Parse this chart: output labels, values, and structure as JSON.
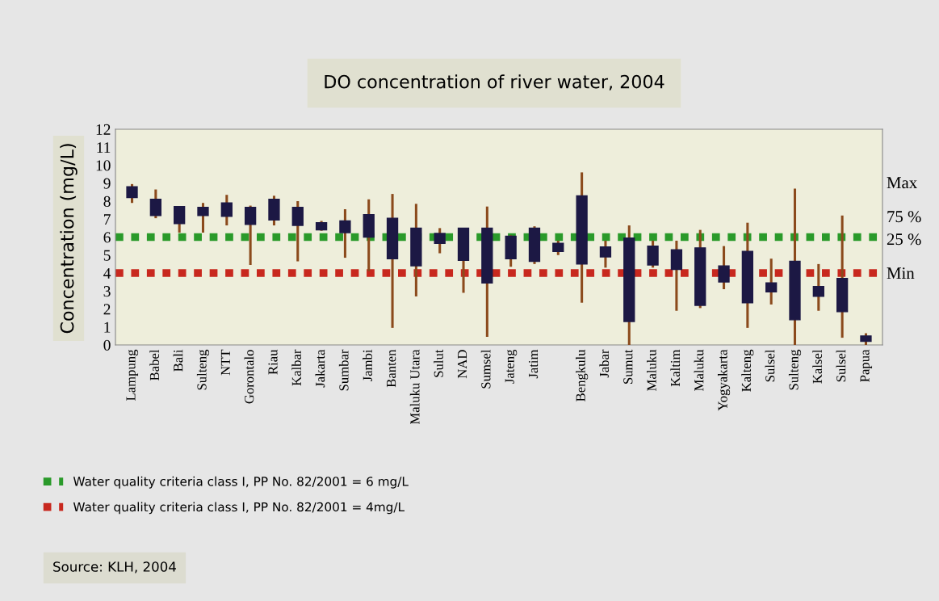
{
  "chart_data": {
    "type": "box",
    "title": "DO concentration of river water, 2004",
    "ylabel": "Concentration (mg/L)",
    "categories": [
      "Lampung",
      "Babel",
      "Bali",
      "Sulteng",
      "NTT",
      "Gorontalo",
      "Riau",
      "Kalbar",
      "Jakarta",
      "Sumbar",
      "Jambi",
      "Banten",
      "Maluku Utara",
      "Sulut",
      "NAD",
      "Sumsel",
      "Jateng",
      "Jatim",
      null,
      "Bengkulu",
      "Jabar",
      "Sumut",
      "Maluku",
      "Kaltim",
      "Maluku",
      "Yogyakarta",
      "Kalteng",
      "Sulsel",
      "Sulteng",
      "Kalsel",
      "Sulsel",
      "Papua"
    ],
    "color": "#1c1844",
    "boxes": [
      {
        "low": 7.9,
        "q1": 8.2,
        "q3": 8.8,
        "high": 8.95
      },
      {
        "low": 7.05,
        "q1": 7.2,
        "q3": 8.1,
        "high": 8.65
      },
      {
        "low": 6.25,
        "q1": 6.75,
        "q3": 7.7,
        "high": 7.7
      },
      {
        "low": 6.25,
        "q1": 7.2,
        "q3": 7.65,
        "high": 7.9
      },
      {
        "low": 6.65,
        "q1": 7.15,
        "q3": 7.9,
        "high": 8.35
      },
      {
        "low": 4.45,
        "q1": 6.7,
        "q3": 7.65,
        "high": 7.75
      },
      {
        "low": 6.65,
        "q1": 6.95,
        "q3": 8.1,
        "high": 8.3
      },
      {
        "low": 4.65,
        "q1": 6.65,
        "q3": 7.65,
        "high": 8.0
      },
      {
        "low": 6.35,
        "q1": 6.4,
        "q3": 6.8,
        "high": 6.9
      },
      {
        "low": 4.85,
        "q1": 6.25,
        "q3": 6.9,
        "high": 7.55
      },
      {
        "low": 4.1,
        "q1": 6.0,
        "q3": 7.25,
        "high": 8.1
      },
      {
        "low": 0.95,
        "q1": 4.8,
        "q3": 7.05,
        "high": 8.4
      },
      {
        "low": 2.7,
        "q1": 4.4,
        "q3": 6.5,
        "high": 7.85
      },
      {
        "low": 5.1,
        "q1": 5.65,
        "q3": 6.2,
        "high": 6.5
      },
      {
        "low": 2.9,
        "q1": 4.7,
        "q3": 6.5,
        "high": 6.5
      },
      {
        "low": 0.45,
        "q1": 3.45,
        "q3": 6.5,
        "high": 7.7
      },
      {
        "low": 4.35,
        "q1": 4.8,
        "q3": 6.05,
        "high": 6.1
      },
      {
        "low": 4.5,
        "q1": 4.65,
        "q3": 6.5,
        "high": 6.6
      },
      {
        "low": 5.0,
        "q1": 5.2,
        "q3": 5.65,
        "high": 5.8
      },
      {
        "low": 2.35,
        "q1": 4.5,
        "q3": 8.3,
        "high": 9.6
      },
      {
        "low": 4.3,
        "q1": 4.9,
        "q3": 5.45,
        "high": 5.8
      },
      {
        "low": 0.0,
        "q1": 1.3,
        "q3": 5.95,
        "high": 6.65
      },
      {
        "low": 4.3,
        "q1": 4.45,
        "q3": 5.5,
        "high": 5.8
      },
      {
        "low": 1.9,
        "q1": 4.2,
        "q3": 5.3,
        "high": 5.8
      },
      {
        "low": 2.05,
        "q1": 2.2,
        "q3": 5.4,
        "high": 6.4
      },
      {
        "low": 3.1,
        "q1": 3.5,
        "q3": 4.4,
        "high": 5.5
      },
      {
        "low": 0.95,
        "q1": 2.35,
        "q3": 5.2,
        "high": 6.8
      },
      {
        "low": 2.25,
        "q1": 2.95,
        "q3": 3.45,
        "high": 4.8
      },
      {
        "low": 0.0,
        "q1": 1.4,
        "q3": 4.65,
        "high": 8.7
      },
      {
        "low": 1.9,
        "q1": 2.7,
        "q3": 3.25,
        "high": 4.5
      },
      {
        "low": 0.4,
        "q1": 1.85,
        "q3": 3.7,
        "high": 7.2
      },
      {
        "low": 0.0,
        "q1": 0.2,
        "q3": 0.5,
        "high": 0.65
      }
    ],
    "ylim": [
      0,
      12
    ],
    "yticks": [
      0,
      1,
      2,
      3,
      4,
      5,
      6,
      7,
      8,
      9,
      10,
      11,
      12
    ],
    "ref_lines": [
      {
        "axis": "y",
        "value": 6,
        "label": "Water quality criteria class I, PP No. 82/2001 = 6 mg/L",
        "color": "#2a9a2a",
        "line_style": "dotted"
      },
      {
        "axis": "y",
        "value": 4,
        "label": "Water quality criteria class I, PP No. 82/2001 = 4mg/L",
        "color": "#c8281e",
        "line_style": "dotted"
      }
    ],
    "legend": "bottom left",
    "annotations": [
      "Max",
      "75 %",
      "25 %",
      "Min",
      "Source: KLH, 2004"
    ]
  }
}
